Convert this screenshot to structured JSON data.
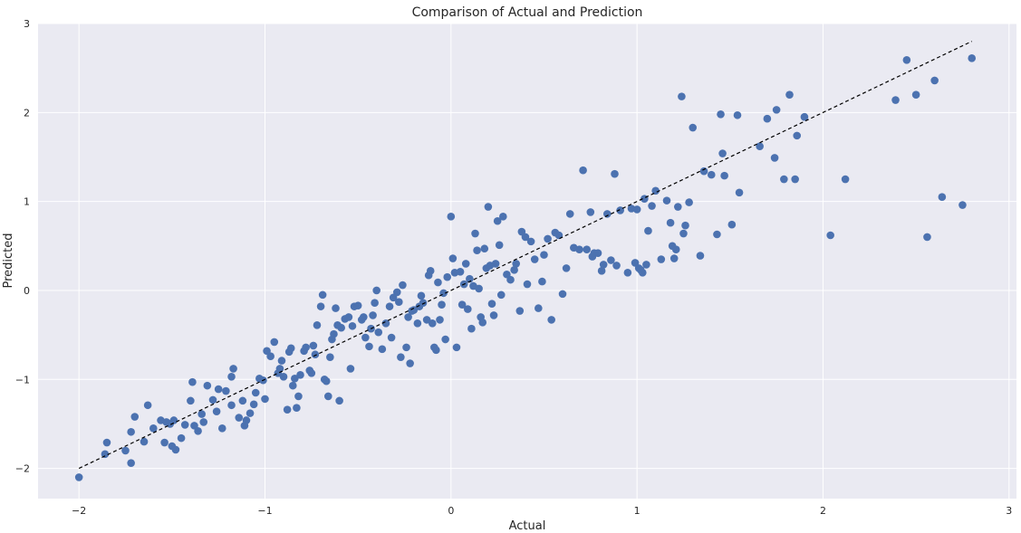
{
  "chart_data": {
    "type": "scatter",
    "title": "Comparison of Actual and Prediction",
    "xlabel": "Actual",
    "ylabel": "Predicted",
    "xlim": [
      -2.22,
      3.04
    ],
    "ylim": [
      -2.34,
      3.0
    ],
    "xticks": [
      -2,
      -1,
      0,
      1,
      2,
      3
    ],
    "yticks": [
      -2,
      -1,
      0,
      1,
      2,
      3
    ],
    "xtick_labels": [
      "−2",
      "−1",
      "0",
      "1",
      "2",
      "3"
    ],
    "ytick_labels": [
      "−2",
      "−1",
      "0",
      "1",
      "2",
      "3"
    ],
    "grid": true,
    "reference_line": {
      "x": [
        -2.0,
        2.8
      ],
      "y": [
        -2.0,
        2.8
      ],
      "style": "dashed",
      "color": "#000000"
    },
    "marker_color": "#4c72b0",
    "background_color": "#eaeaf2",
    "points": [
      [
        -2.0,
        -2.1
      ],
      [
        -1.86,
        -1.84
      ],
      [
        -1.85,
        -1.71
      ],
      [
        -1.72,
        -1.94
      ],
      [
        -1.75,
        -1.8
      ],
      [
        -1.72,
        -1.59
      ],
      [
        -1.7,
        -1.42
      ],
      [
        -1.65,
        -1.7
      ],
      [
        -1.63,
        -1.29
      ],
      [
        -1.6,
        -1.55
      ],
      [
        -1.56,
        -1.46
      ],
      [
        -1.54,
        -1.71
      ],
      [
        -1.53,
        -1.48
      ],
      [
        -1.51,
        -1.5
      ],
      [
        -1.5,
        -1.75
      ],
      [
        -1.49,
        -1.46
      ],
      [
        -1.48,
        -1.79
      ],
      [
        -1.45,
        -1.66
      ],
      [
        -1.43,
        -1.51
      ],
      [
        -1.4,
        -1.24
      ],
      [
        -1.39,
        -1.03
      ],
      [
        -1.38,
        -1.52
      ],
      [
        -1.36,
        -1.58
      ],
      [
        -1.34,
        -1.39
      ],
      [
        -1.33,
        -1.48
      ],
      [
        -1.31,
        -1.07
      ],
      [
        -1.28,
        -1.23
      ],
      [
        -1.26,
        -1.36
      ],
      [
        -1.25,
        -1.11
      ],
      [
        -1.23,
        -1.55
      ],
      [
        -1.21,
        -1.13
      ],
      [
        -1.18,
        -1.29
      ],
      [
        -1.18,
        -0.97
      ],
      [
        -1.17,
        -0.88
      ],
      [
        -1.14,
        -1.43
      ],
      [
        -1.12,
        -1.24
      ],
      [
        -1.11,
        -1.52
      ],
      [
        -1.1,
        -1.46
      ],
      [
        -1.08,
        -1.38
      ],
      [
        -1.06,
        -1.28
      ],
      [
        -1.05,
        -1.15
      ],
      [
        -1.03,
        -0.99
      ],
      [
        -1.01,
        -1.01
      ],
      [
        -1.0,
        -1.22
      ],
      [
        -0.99,
        -0.68
      ],
      [
        -0.97,
        -0.74
      ],
      [
        -0.95,
        -0.58
      ],
      [
        -0.93,
        -0.93
      ],
      [
        -0.92,
        -0.88
      ],
      [
        -0.91,
        -0.79
      ],
      [
        -0.9,
        -0.97
      ],
      [
        -0.88,
        -1.34
      ],
      [
        -0.87,
        -0.69
      ],
      [
        -0.86,
        -0.65
      ],
      [
        -0.85,
        -1.07
      ],
      [
        -0.84,
        -0.99
      ],
      [
        -0.83,
        -1.32
      ],
      [
        -0.82,
        -1.19
      ],
      [
        -0.81,
        -0.95
      ],
      [
        -0.79,
        -0.68
      ],
      [
        -0.78,
        -0.64
      ],
      [
        -0.76,
        -0.9
      ],
      [
        -0.75,
        -0.93
      ],
      [
        -0.74,
        -0.62
      ],
      [
        -0.73,
        -0.72
      ],
      [
        -0.72,
        -0.39
      ],
      [
        -0.7,
        -0.18
      ],
      [
        -0.69,
        -0.05
      ],
      [
        -0.68,
        -1.0
      ],
      [
        -0.67,
        -1.02
      ],
      [
        -0.66,
        -1.19
      ],
      [
        -0.65,
        -0.75
      ],
      [
        -0.64,
        -0.55
      ],
      [
        -0.63,
        -0.49
      ],
      [
        -0.62,
        -0.2
      ],
      [
        -0.61,
        -0.39
      ],
      [
        -0.6,
        -1.24
      ],
      [
        -0.59,
        -0.42
      ],
      [
        -0.57,
        -0.32
      ],
      [
        -0.55,
        -0.3
      ],
      [
        -0.54,
        -0.88
      ],
      [
        -0.53,
        -0.4
      ],
      [
        -0.52,
        -0.18
      ],
      [
        -0.5,
        -0.17
      ],
      [
        -0.48,
        -0.33
      ],
      [
        -0.47,
        -0.3
      ],
      [
        -0.46,
        -0.53
      ],
      [
        -0.44,
        -0.63
      ],
      [
        -0.43,
        -0.43
      ],
      [
        -0.42,
        -0.28
      ],
      [
        -0.41,
        -0.14
      ],
      [
        -0.4,
        0.0
      ],
      [
        -0.39,
        -0.47
      ],
      [
        -0.37,
        -0.66
      ],
      [
        -0.35,
        -0.37
      ],
      [
        -0.33,
        -0.18
      ],
      [
        -0.32,
        -0.53
      ],
      [
        -0.31,
        -0.08
      ],
      [
        -0.29,
        -0.02
      ],
      [
        -0.28,
        -0.13
      ],
      [
        -0.27,
        -0.75
      ],
      [
        -0.26,
        0.06
      ],
      [
        -0.24,
        -0.64
      ],
      [
        -0.23,
        -0.3
      ],
      [
        -0.22,
        -0.82
      ],
      [
        -0.21,
        -0.23
      ],
      [
        -0.2,
        -0.22
      ],
      [
        -0.18,
        -0.37
      ],
      [
        -0.17,
        -0.18
      ],
      [
        -0.16,
        -0.06
      ],
      [
        -0.15,
        -0.14
      ],
      [
        -0.13,
        -0.33
      ],
      [
        -0.12,
        0.17
      ],
      [
        -0.11,
        0.22
      ],
      [
        -0.1,
        -0.37
      ],
      [
        -0.09,
        -0.64
      ],
      [
        -0.08,
        -0.67
      ],
      [
        -0.07,
        0.09
      ],
      [
        -0.06,
        -0.33
      ],
      [
        -0.05,
        -0.16
      ],
      [
        -0.04,
        -0.03
      ],
      [
        -0.03,
        -0.55
      ],
      [
        -0.02,
        0.15
      ],
      [
        0.0,
        0.83
      ],
      [
        0.01,
        0.36
      ],
      [
        0.02,
        0.2
      ],
      [
        0.03,
        -0.64
      ],
      [
        0.05,
        0.21
      ],
      [
        0.06,
        -0.16
      ],
      [
        0.07,
        0.07
      ],
      [
        0.08,
        0.3
      ],
      [
        0.09,
        -0.21
      ],
      [
        0.1,
        0.13
      ],
      [
        0.11,
        -0.43
      ],
      [
        0.12,
        0.05
      ],
      [
        0.13,
        0.64
      ],
      [
        0.14,
        0.45
      ],
      [
        0.15,
        0.02
      ],
      [
        0.16,
        -0.3
      ],
      [
        0.17,
        -0.36
      ],
      [
        0.18,
        0.47
      ],
      [
        0.19,
        0.25
      ],
      [
        0.2,
        0.94
      ],
      [
        0.21,
        0.28
      ],
      [
        0.22,
        -0.15
      ],
      [
        0.23,
        -0.28
      ],
      [
        0.24,
        0.3
      ],
      [
        0.25,
        0.78
      ],
      [
        0.26,
        0.51
      ],
      [
        0.27,
        -0.05
      ],
      [
        0.28,
        0.83
      ],
      [
        0.3,
        0.18
      ],
      [
        0.32,
        0.12
      ],
      [
        0.34,
        0.23
      ],
      [
        0.35,
        0.3
      ],
      [
        0.37,
        -0.23
      ],
      [
        0.38,
        0.66
      ],
      [
        0.4,
        0.6
      ],
      [
        0.41,
        0.07
      ],
      [
        0.43,
        0.55
      ],
      [
        0.45,
        0.35
      ],
      [
        0.47,
        -0.2
      ],
      [
        0.49,
        0.1
      ],
      [
        0.5,
        0.4
      ],
      [
        0.52,
        0.58
      ],
      [
        0.54,
        -0.33
      ],
      [
        0.56,
        0.65
      ],
      [
        0.58,
        0.62
      ],
      [
        0.6,
        -0.04
      ],
      [
        0.62,
        0.25
      ],
      [
        0.64,
        0.86
      ],
      [
        0.66,
        0.48
      ],
      [
        0.69,
        0.46
      ],
      [
        0.71,
        1.35
      ],
      [
        0.73,
        0.46
      ],
      [
        0.75,
        0.88
      ],
      [
        0.76,
        0.38
      ],
      [
        0.77,
        0.42
      ],
      [
        0.79,
        0.42
      ],
      [
        0.81,
        0.22
      ],
      [
        0.82,
        0.29
      ],
      [
        0.84,
        0.86
      ],
      [
        0.86,
        0.34
      ],
      [
        0.88,
        1.31
      ],
      [
        0.89,
        0.28
      ],
      [
        0.91,
        0.9
      ],
      [
        0.95,
        0.2
      ],
      [
        0.97,
        0.92
      ],
      [
        0.99,
        0.31
      ],
      [
        1.0,
        0.91
      ],
      [
        1.01,
        0.25
      ],
      [
        1.02,
        0.23
      ],
      [
        1.03,
        0.2
      ],
      [
        1.04,
        1.03
      ],
      [
        1.05,
        0.29
      ],
      [
        1.06,
        0.67
      ],
      [
        1.08,
        0.95
      ],
      [
        1.1,
        1.12
      ],
      [
        1.13,
        0.35
      ],
      [
        1.16,
        1.01
      ],
      [
        1.18,
        0.76
      ],
      [
        1.19,
        0.5
      ],
      [
        1.2,
        0.36
      ],
      [
        1.21,
        0.46
      ],
      [
        1.22,
        0.94
      ],
      [
        1.24,
        2.18
      ],
      [
        1.25,
        0.64
      ],
      [
        1.26,
        0.73
      ],
      [
        1.28,
        0.99
      ],
      [
        1.3,
        1.83
      ],
      [
        1.34,
        0.39
      ],
      [
        1.36,
        1.34
      ],
      [
        1.4,
        1.3
      ],
      [
        1.43,
        0.63
      ],
      [
        1.45,
        1.98
      ],
      [
        1.46,
        1.54
      ],
      [
        1.47,
        1.29
      ],
      [
        1.51,
        0.74
      ],
      [
        1.54,
        1.97
      ],
      [
        1.55,
        1.1
      ],
      [
        1.66,
        1.62
      ],
      [
        1.7,
        1.93
      ],
      [
        1.74,
        1.49
      ],
      [
        1.75,
        2.03
      ],
      [
        1.79,
        1.25
      ],
      [
        1.82,
        2.2
      ],
      [
        1.85,
        1.25
      ],
      [
        1.86,
        1.74
      ],
      [
        1.9,
        1.95
      ],
      [
        2.04,
        0.62
      ],
      [
        2.12,
        1.25
      ],
      [
        2.39,
        2.14
      ],
      [
        2.45,
        2.59
      ],
      [
        2.5,
        2.2
      ],
      [
        2.56,
        0.6
      ],
      [
        2.6,
        2.36
      ],
      [
        2.64,
        1.05
      ],
      [
        2.75,
        0.96
      ],
      [
        2.8,
        2.61
      ]
    ]
  }
}
